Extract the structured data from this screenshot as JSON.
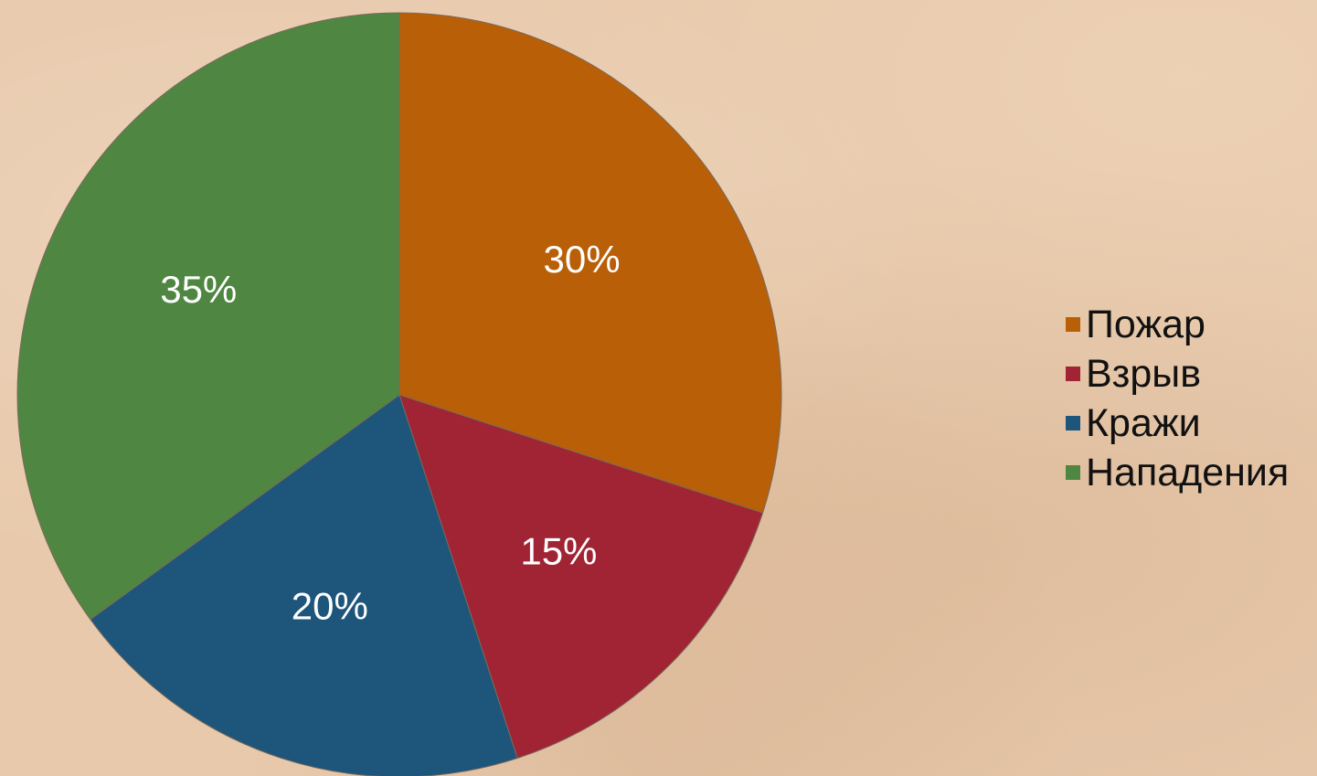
{
  "chart_data": {
    "type": "pie",
    "title": "",
    "categories": [
      "Пожар",
      "Взрыв",
      "Кражи",
      "Нападения"
    ],
    "values": [
      30,
      15,
      20,
      35
    ],
    "labels": [
      "30%",
      "15%",
      "20%",
      "35%"
    ],
    "colors": [
      "#b95f08",
      "#a02434",
      "#1e557b",
      "#4f8641"
    ],
    "start_angle_deg": 0,
    "direction": "clockwise",
    "legend_position": "right"
  }
}
